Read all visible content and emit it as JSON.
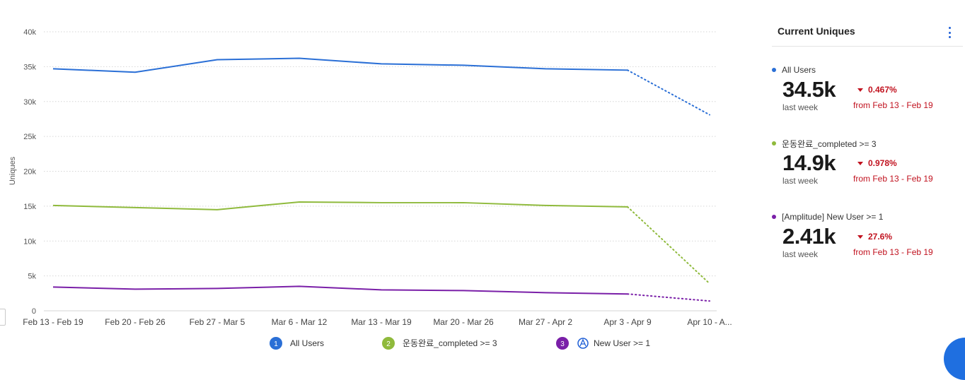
{
  "chart_data": {
    "type": "line",
    "ylabel": "Uniques",
    "yticks": [
      "0",
      "5k",
      "10k",
      "15k",
      "20k",
      "25k",
      "30k",
      "35k",
      "40k"
    ],
    "ylim": [
      0,
      40000
    ],
    "categories": [
      "Feb 13 - Feb 19",
      "Feb 20 - Feb 26",
      "Feb 27 - Mar 5",
      "Mar 6 - Mar 12",
      "Mar 13 - Mar 19",
      "Mar 20 - Mar 26",
      "Mar 27 - Apr 2",
      "Apr 3 - Apr 9",
      "Apr 10 - A..."
    ],
    "incomplete_from_index": 7,
    "grid": true,
    "series": [
      {
        "name": "All Users",
        "color": "#2a6fd6",
        "values": [
          34700,
          34200,
          36000,
          36200,
          35400,
          35200,
          34700,
          34500,
          28100
        ]
      },
      {
        "name": "운동완료_completed >= 3",
        "color": "#8fba3c",
        "values": [
          15100,
          14800,
          14500,
          15600,
          15500,
          15500,
          15100,
          14900,
          3900
        ]
      },
      {
        "name": "[Amplitude] New User >= 1",
        "color": "#7a1fa8",
        "values": [
          3400,
          3100,
          3200,
          3500,
          3000,
          2900,
          2600,
          2410,
          1400
        ]
      }
    ],
    "legend": [
      {
        "num": "1",
        "label": "All Users",
        "color": "#2a6fd6"
      },
      {
        "num": "2",
        "label": "운동완료_completed >= 3",
        "color": "#8fba3c"
      },
      {
        "num": "3",
        "label": "New User >= 1",
        "color": "#7a1fa8",
        "icon": "amplitude-logo-icon"
      }
    ]
  },
  "panel": {
    "title": "Current Uniques",
    "menu_icon": "kebab-menu-icon",
    "metrics": [
      {
        "name": "All Users",
        "color": "#2a6fd6",
        "value": "34.5k",
        "period": "last week",
        "change": "0.467%",
        "direction": "down",
        "from": "from Feb 13 - Feb 19"
      },
      {
        "name": "운동완료_completed >= 3",
        "color": "#8fba3c",
        "value": "14.9k",
        "period": "last week",
        "change": "0.978%",
        "direction": "down",
        "from": "from Feb 13 - Feb 19"
      },
      {
        "name": "[Amplitude] New User >= 1",
        "color": "#7a1fa8",
        "value": "2.41k",
        "period": "last week",
        "change": "27.6%",
        "direction": "down",
        "from": "from Feb 13 - Feb 19"
      }
    ]
  }
}
